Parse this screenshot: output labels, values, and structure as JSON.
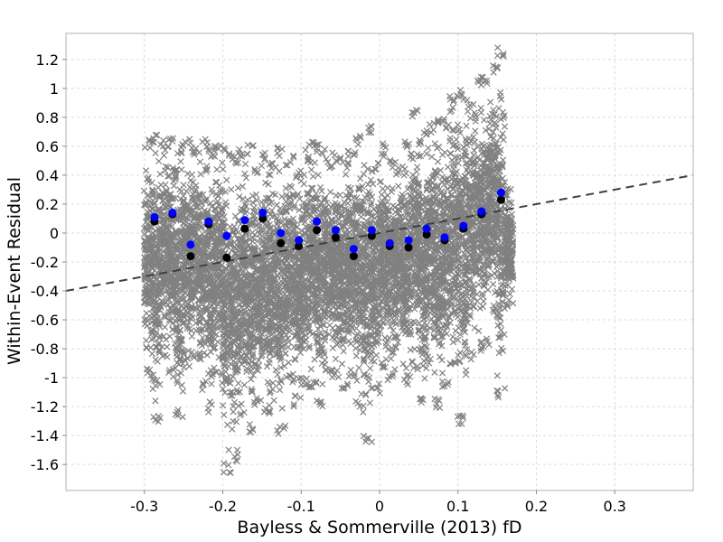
{
  "chart_data": {
    "type": "scatter",
    "title": "",
    "xlabel": "Bayless & Sommerville (2013) fD",
    "ylabel": "Within-Event Residual",
    "xlim": [
      -0.4,
      0.4
    ],
    "ylim": [
      -1.78,
      1.38
    ],
    "x_ticks": [
      -0.3,
      -0.2,
      -0.1,
      0,
      0.1,
      0.2,
      0.3
    ],
    "y_ticks": [
      -1.6,
      -1.4,
      -1.2,
      -1,
      -0.8,
      -0.6,
      -0.4,
      -0.2,
      0,
      0.2,
      0.4,
      0.6,
      0.8,
      1,
      1.2
    ],
    "grid": true,
    "legend": false,
    "colors": {
      "residuals": "#808080",
      "bin_means_black": "#000000",
      "bin_means_blue": "#0000ff",
      "trend_line": "#404040"
    },
    "trend_line": {
      "style": "dashed",
      "points": [
        [
          -0.4,
          -0.4
        ],
        [
          0.4,
          0.4
        ]
      ]
    },
    "series_black": {
      "x": [
        -0.287,
        -0.264,
        -0.241,
        -0.218,
        -0.195,
        -0.172,
        -0.149,
        -0.126,
        -0.103,
        -0.08,
        -0.056,
        -0.033,
        -0.01,
        0.013,
        0.037,
        0.06,
        0.083,
        0.107,
        0.13,
        0.155
      ],
      "y": [
        0.08,
        0.13,
        -0.16,
        0.06,
        -0.17,
        0.03,
        0.1,
        -0.07,
        -0.09,
        0.02,
        -0.03,
        -0.16,
        -0.02,
        -0.09,
        -0.1,
        -0.01,
        -0.05,
        0.03,
        0.13,
        0.23
      ]
    },
    "series_blue": {
      "x": [
        -0.287,
        -0.264,
        -0.241,
        -0.218,
        -0.195,
        -0.172,
        -0.149,
        -0.126,
        -0.103,
        -0.08,
        -0.056,
        -0.033,
        -0.01,
        0.013,
        0.037,
        0.06,
        0.083,
        0.107,
        0.13,
        0.155
      ],
      "y": [
        0.11,
        0.14,
        -0.08,
        0.08,
        -0.02,
        0.09,
        0.14,
        0.0,
        -0.05,
        0.08,
        0.02,
        -0.11,
        0.02,
        -0.07,
        -0.05,
        0.03,
        -0.03,
        0.05,
        0.15,
        0.28
      ]
    },
    "residual_envelope": {
      "x": [
        -0.295,
        -0.285,
        -0.275,
        -0.265,
        -0.255,
        -0.245,
        -0.235,
        -0.225,
        -0.215,
        -0.205,
        -0.195,
        -0.185,
        -0.175,
        -0.165,
        -0.155,
        -0.145,
        -0.135,
        -0.125,
        -0.115,
        -0.105,
        -0.095,
        -0.085,
        -0.075,
        -0.065,
        -0.055,
        -0.045,
        -0.035,
        -0.025,
        -0.015,
        -0.005,
        0.005,
        0.015,
        0.025,
        0.035,
        0.045,
        0.055,
        0.065,
        0.075,
        0.085,
        0.095,
        0.105,
        0.115,
        0.125,
        0.135,
        0.145,
        0.155,
        0.165
      ],
      "ymax": [
        0.66,
        0.68,
        0.64,
        0.67,
        0.62,
        0.66,
        0.6,
        0.65,
        0.58,
        0.63,
        0.61,
        0.54,
        0.6,
        0.62,
        0.48,
        0.56,
        0.52,
        0.6,
        0.54,
        0.44,
        0.58,
        0.66,
        0.62,
        0.52,
        0.56,
        0.55,
        0.6,
        0.68,
        0.74,
        0.5,
        0.62,
        0.52,
        0.48,
        0.64,
        0.86,
        0.7,
        0.76,
        0.82,
        0.8,
        0.97,
        1.0,
        0.92,
        1.08,
        1.1,
        1.16,
        1.3,
        0.32
      ],
      "ymin": [
        -1.0,
        -1.34,
        -0.86,
        -1.0,
        -1.3,
        -0.94,
        -0.9,
        -1.1,
        -1.24,
        -1.04,
        -1.66,
        -1.58,
        -1.26,
        -1.4,
        -1.22,
        -1.26,
        -1.16,
        -1.4,
        -1.04,
        -1.2,
        -1.08,
        -1.1,
        -1.2,
        -0.98,
        -1.02,
        -1.1,
        -1.0,
        -1.24,
        -1.46,
        -1.12,
        -0.95,
        -1.02,
        -0.8,
        -1.06,
        -0.96,
        -1.2,
        -0.9,
        -1.22,
        -1.08,
        -0.94,
        -1.32,
        -0.88,
        -0.82,
        -0.8,
        -0.6,
        -1.14,
        -0.52
      ]
    }
  }
}
